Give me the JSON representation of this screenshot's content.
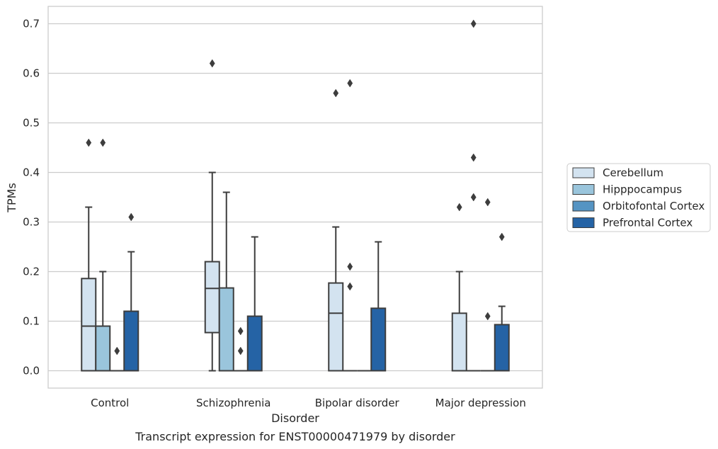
{
  "chart_data": {
    "type": "box",
    "caption": "Transcript expression for ENST00000471979 by disorder",
    "xlabel": "Disorder",
    "ylabel": "TPMs",
    "ylim": [
      -0.035,
      0.735
    ],
    "yticks": [
      0.0,
      0.1,
      0.2,
      0.3,
      0.4,
      0.5,
      0.6,
      0.7
    ],
    "ytick_labels": [
      "0.0",
      "0.1",
      "0.2",
      "0.3",
      "0.4",
      "0.5",
      "0.6",
      "0.7"
    ],
    "grid": "horizontal",
    "legend_position": "right",
    "categories": [
      "Control",
      "Schizophrenia",
      "Bipolar disorder",
      "Major depression"
    ],
    "series": [
      {
        "name": "Cerebellum",
        "color": "#d3e3f0",
        "boxes": [
          {
            "q1": 0.0,
            "median": 0.09,
            "q3": 0.186,
            "whisker_low": 0.0,
            "whisker_high": 0.33,
            "outliers": [
              0.46
            ]
          },
          {
            "q1": 0.077,
            "median": 0.166,
            "q3": 0.22,
            "whisker_low": 0.0,
            "whisker_high": 0.4,
            "outliers": [
              0.62
            ]
          },
          {
            "q1": 0.0,
            "median": 0.116,
            "q3": 0.177,
            "whisker_low": 0.0,
            "whisker_high": 0.29,
            "outliers": [
              0.56
            ]
          },
          {
            "q1": 0.0,
            "median": 0.0,
            "q3": 0.116,
            "whisker_low": 0.0,
            "whisker_high": 0.2,
            "outliers": [
              0.33
            ]
          }
        ]
      },
      {
        "name": "Hipppocampus",
        "color": "#9ac5dc",
        "boxes": [
          {
            "q1": 0.0,
            "median": 0.09,
            "q3": 0.09,
            "whisker_low": 0.0,
            "whisker_high": 0.2,
            "outliers": [
              0.46
            ]
          },
          {
            "q1": 0.0,
            "median": 0.0,
            "q3": 0.167,
            "whisker_low": 0.0,
            "whisker_high": 0.36,
            "outliers": []
          },
          {
            "q1": 0.0,
            "median": 0.0,
            "q3": 0.0,
            "whisker_low": 0.0,
            "whisker_high": 0.0,
            "outliers": [
              0.58,
              0.21,
              0.17
            ]
          },
          {
            "q1": 0.0,
            "median": 0.0,
            "q3": 0.0,
            "whisker_low": 0.0,
            "whisker_high": 0.0,
            "outliers": [
              0.7,
              0.43,
              0.35
            ]
          }
        ]
      },
      {
        "name": "Orbitofontal Cortex",
        "color": "#5594c3",
        "boxes": [
          {
            "q1": 0.0,
            "median": 0.0,
            "q3": 0.0,
            "whisker_low": 0.0,
            "whisker_high": 0.0,
            "outliers": [
              0.04
            ]
          },
          {
            "q1": 0.0,
            "median": 0.0,
            "q3": 0.0,
            "whisker_low": 0.0,
            "whisker_high": 0.0,
            "outliers": [
              0.08,
              0.04
            ]
          },
          {
            "q1": 0.0,
            "median": 0.0,
            "q3": 0.0,
            "whisker_low": 0.0,
            "whisker_high": 0.0,
            "outliers": []
          },
          {
            "q1": 0.0,
            "median": 0.0,
            "q3": 0.0,
            "whisker_low": 0.0,
            "whisker_high": 0.0,
            "outliers": [
              0.34,
              0.11
            ]
          }
        ]
      },
      {
        "name": "Prefrontal Cortex",
        "color": "#2563a5",
        "boxes": [
          {
            "q1": 0.0,
            "median": 0.0,
            "q3": 0.12,
            "whisker_low": 0.0,
            "whisker_high": 0.24,
            "outliers": [
              0.31
            ]
          },
          {
            "q1": 0.0,
            "median": 0.0,
            "q3": 0.11,
            "whisker_low": 0.0,
            "whisker_high": 0.27,
            "outliers": []
          },
          {
            "q1": 0.0,
            "median": 0.0,
            "q3": 0.126,
            "whisker_low": 0.0,
            "whisker_high": 0.26,
            "outliers": []
          },
          {
            "q1": 0.0,
            "median": 0.0,
            "q3": 0.093,
            "whisker_low": 0.0,
            "whisker_high": 0.13,
            "outliers": [
              0.27
            ]
          }
        ]
      }
    ]
  }
}
